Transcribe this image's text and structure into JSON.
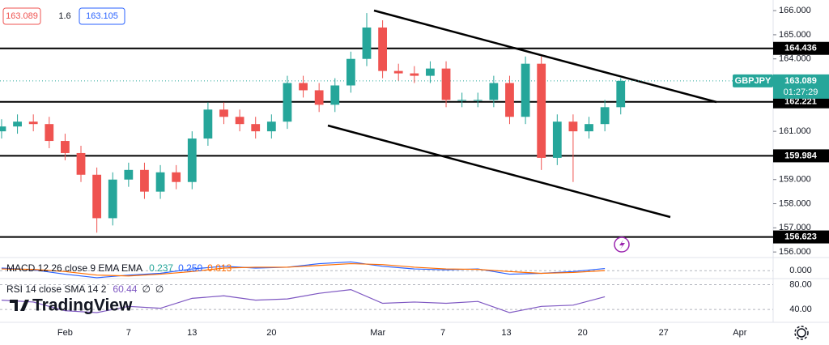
{
  "header": {
    "bid": "163.089",
    "spread": "1.6",
    "ask": "163.105",
    "brand": "TradingView"
  },
  "chart_data": [
    {
      "type": "candlestick",
      "symbol": "GBPJPY",
      "last_price": 163.089,
      "countdown": "01:27:29",
      "x": [
        -4,
        -3,
        -2,
        -1,
        0,
        1,
        2,
        3,
        4,
        5,
        6,
        7,
        8,
        9,
        10,
        11,
        12,
        13,
        14,
        15,
        16,
        17,
        18,
        19,
        20,
        21,
        22,
        23,
        24,
        25,
        26,
        27,
        28,
        29,
        30,
        31,
        32,
        33,
        34,
        35
      ],
      "open": [
        161.0,
        161.2,
        161.4,
        161.3,
        160.6,
        160.1,
        159.2,
        157.4,
        159.0,
        159.4,
        158.5,
        159.3,
        158.9,
        160.7,
        161.9,
        161.6,
        161.3,
        161.0,
        161.4,
        163.0,
        162.7,
        162.1,
        162.9,
        164.0,
        165.3,
        163.5,
        163.4,
        163.3,
        163.6,
        162.3,
        162.3,
        162.3,
        163.0,
        161.6,
        163.8,
        159.9,
        161.4,
        161.0,
        161.3,
        162.0
      ],
      "high": [
        161.5,
        161.7,
        161.7,
        161.6,
        160.9,
        160.4,
        159.5,
        159.3,
        159.7,
        159.7,
        159.6,
        159.6,
        161.0,
        162.2,
        162.2,
        161.9,
        161.6,
        161.7,
        163.3,
        163.3,
        163.0,
        163.2,
        164.3,
        165.9,
        165.6,
        163.8,
        163.7,
        163.9,
        163.9,
        162.6,
        162.6,
        163.3,
        163.3,
        164.1,
        164.1,
        161.7,
        161.7,
        161.6,
        162.3,
        163.2
      ],
      "low": [
        160.7,
        160.9,
        161.0,
        160.3,
        159.8,
        158.9,
        156.8,
        157.1,
        158.7,
        158.2,
        158.2,
        158.6,
        158.6,
        160.4,
        161.3,
        161.0,
        160.7,
        160.7,
        161.1,
        162.4,
        161.8,
        161.8,
        162.6,
        163.7,
        163.2,
        163.1,
        163.0,
        163.0,
        162.0,
        162.0,
        162.0,
        162.0,
        161.3,
        161.3,
        159.4,
        159.6,
        158.9,
        160.7,
        161.0,
        161.7
      ],
      "close": [
        161.2,
        161.4,
        161.3,
        160.6,
        160.1,
        159.2,
        157.4,
        159.0,
        159.4,
        158.5,
        159.3,
        158.9,
        160.7,
        161.9,
        161.6,
        161.3,
        161.0,
        161.4,
        163.0,
        162.7,
        162.1,
        162.9,
        164.0,
        165.3,
        163.5,
        163.4,
        163.3,
        163.6,
        162.3,
        162.3,
        162.3,
        163.0,
        161.6,
        163.8,
        159.9,
        161.4,
        161.0,
        161.3,
        162.0,
        163.089
      ],
      "up_color": "#26a69a",
      "down_color": "#ef5350",
      "levels": [
        164.436,
        162.221,
        159.984,
        156.623
      ],
      "level_color": "#000000",
      "xlim": [
        -4.1,
        44.6
      ],
      "xticks": [
        {
          "value": 0,
          "label": "Feb"
        },
        {
          "value": 4,
          "label": "7"
        },
        {
          "value": 8,
          "label": "13"
        },
        {
          "value": 13,
          "label": "20"
        },
        {
          "value": 19.7,
          "label": "Mar"
        },
        {
          "value": 23.8,
          "label": "7"
        },
        {
          "value": 27.8,
          "label": "13"
        },
        {
          "value": 32.6,
          "label": "20"
        },
        {
          "value": 37.7,
          "label": "27"
        },
        {
          "value": 42.5,
          "label": "Apr"
        }
      ],
      "ylim": [
        155.77,
        166.44
      ],
      "yticks": [
        {
          "value": 166,
          "label": "166.000"
        },
        {
          "value": 165,
          "label": "165.000"
        },
        {
          "value": 164,
          "label": "164.000"
        },
        {
          "value": 161,
          "label": "161.000"
        },
        {
          "value": 159,
          "label": "159.000"
        },
        {
          "value": 158,
          "label": "158.000"
        },
        {
          "value": 157,
          "label": "157.000"
        },
        {
          "value": 156,
          "label": "156.000"
        }
      ]
    },
    {
      "type": "line",
      "title": "MACD 12 26 close 9 EMA EMA",
      "readouts": [
        {
          "text": "0.237",
          "color": "#26a69a"
        },
        {
          "text": "0.250",
          "color": "#2962ff"
        },
        {
          "text": "0.013",
          "color": "#ff6d00"
        }
      ],
      "x": [
        -4,
        -2,
        0,
        2,
        4,
        6,
        8,
        10,
        12,
        14,
        16,
        18,
        20,
        22,
        24,
        26,
        28,
        30,
        32,
        34
      ],
      "series": [
        {
          "name": "MACD",
          "color": "#2962ff",
          "values": [
            0.3,
            0.1,
            -0.4,
            -0.8,
            -0.5,
            -0.3,
            0.2,
            0.5,
            0.3,
            0.4,
            0.8,
            1.0,
            0.5,
            0.2,
            0.1,
            0.2,
            -0.4,
            -0.3,
            -0.1,
            0.25
          ]
        },
        {
          "name": "Signal",
          "color": "#ff6d00",
          "values": [
            0.2,
            0.15,
            -0.1,
            -0.5,
            -0.6,
            -0.4,
            -0.1,
            0.3,
            0.4,
            0.4,
            0.6,
            0.8,
            0.7,
            0.4,
            0.2,
            0.15,
            -0.1,
            -0.3,
            -0.2,
            0.013
          ]
        }
      ],
      "ylim": [
        -0.9,
        1.5
      ],
      "yticks": [
        {
          "value": 0,
          "label": "0.000"
        }
      ]
    },
    {
      "type": "line",
      "title": "RSI 14 close SMA 14 2",
      "readouts": [
        {
          "text": "60.44",
          "color": "#7e57c2"
        },
        {
          "text": "∅",
          "color": "#131722"
        },
        {
          "text": "∅",
          "color": "#131722"
        }
      ],
      "x": [
        -4,
        -2,
        0,
        2,
        4,
        6,
        8,
        10,
        12,
        14,
        16,
        18,
        20,
        22,
        24,
        26,
        28,
        30,
        32,
        34
      ],
      "series": [
        {
          "name": "RSI",
          "color": "#7e57c2",
          "values": [
            55,
            52,
            38,
            35,
            45,
            42,
            58,
            62,
            55,
            57,
            66,
            72,
            50,
            52,
            50,
            53,
            35,
            45,
            47,
            60.44
          ]
        }
      ],
      "ylim": [
        20.7,
        89.7
      ],
      "yticks": [
        {
          "value": 80,
          "label": "80.00"
        },
        {
          "value": 40,
          "label": "40.00"
        }
      ]
    }
  ]
}
